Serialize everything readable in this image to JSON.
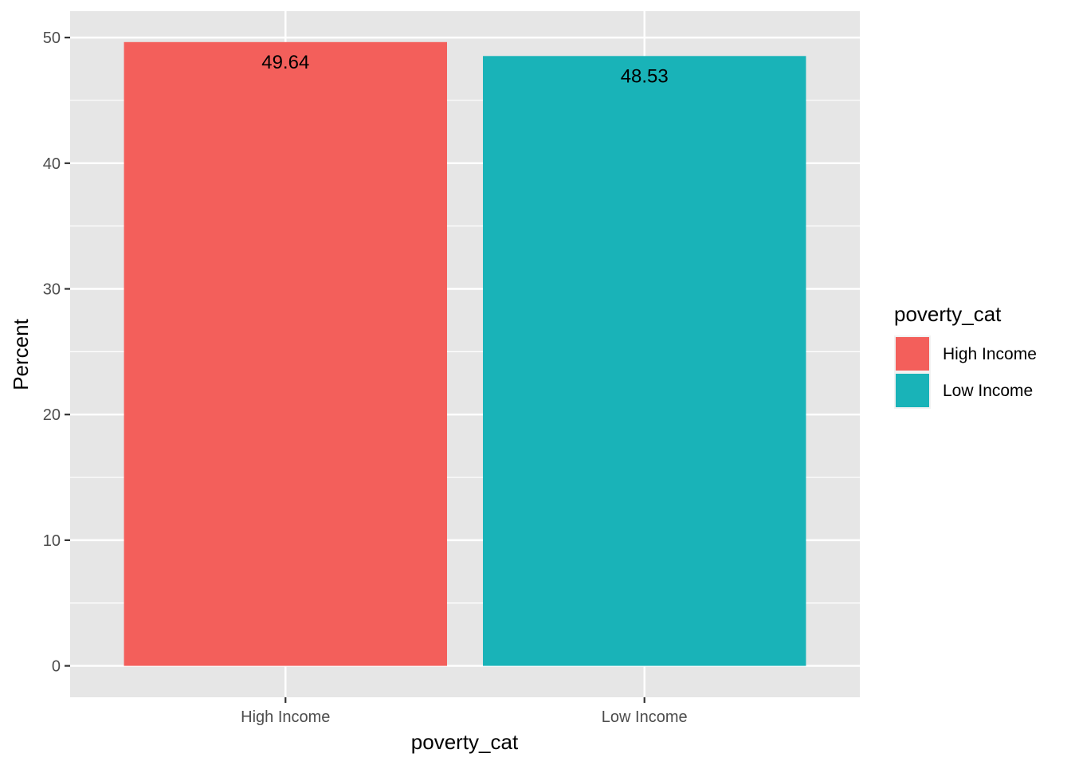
{
  "chart_data": {
    "type": "bar",
    "title": "",
    "xlabel": "poverty_cat",
    "ylabel": "Percent",
    "categories": [
      "High Income",
      "Low Income"
    ],
    "values": [
      49.64,
      48.53
    ],
    "data_labels": [
      "49.64",
      "48.53"
    ],
    "ylim": [
      -2.5,
      52.1
    ],
    "yticks": [
      0,
      10,
      20,
      30,
      40,
      50
    ],
    "ytick_labels": [
      "0",
      "10",
      "20",
      "30",
      "40",
      "50"
    ],
    "grid": true,
    "colors": [
      "#F35F5B",
      "#19B3B8"
    ],
    "panel_background": "#E6E6E6",
    "legend": {
      "title": "poverty_cat",
      "placement": "right",
      "entries": [
        "High Income",
        "Low Income"
      ]
    }
  }
}
